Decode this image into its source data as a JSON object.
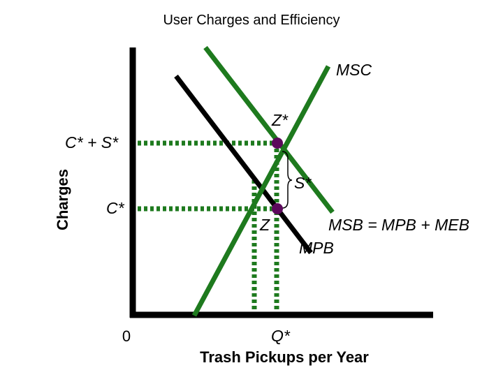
{
  "title": "User Charges and Efficiency",
  "axes": {
    "y_label": "Charges",
    "x_label": "Trash Pickups per Year",
    "origin_label": "0"
  },
  "curves": {
    "msc_label": "MSC",
    "msb_label": "MSB = MPB + MEB",
    "mpb_label": "MPB"
  },
  "points": {
    "z_star": "Z*",
    "z": "Z",
    "s_star": "S*"
  },
  "levels": {
    "c_plus_s": "C* + S*",
    "c": "C*",
    "q_star": "Q*"
  },
  "colors": {
    "green": "#1e7a1e",
    "black": "#000000",
    "point": "#5c0a5c"
  }
}
